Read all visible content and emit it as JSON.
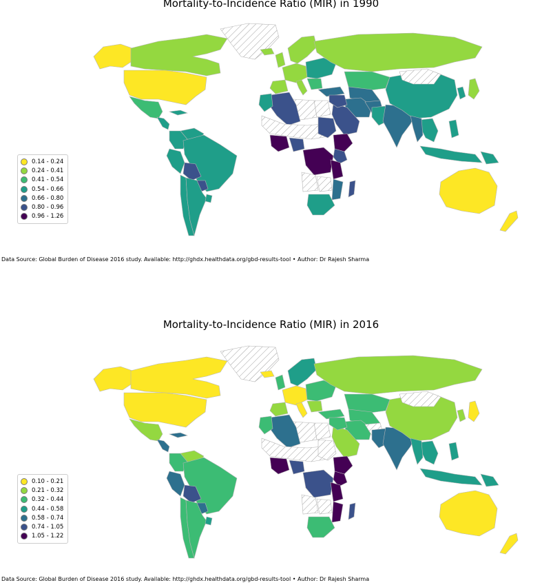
{
  "maps": [
    {
      "title": "Mortality-to-Incidence Ratio (MIR) in 1990",
      "legend": [
        {
          "label": "0.14 - 0.24",
          "color": "#fde725"
        },
        {
          "label": "0.24 - 0.41",
          "color": "#94d840"
        },
        {
          "label": "0.41 - 0.54",
          "color": "#3cbc74"
        },
        {
          "label": "0.54 - 0.66",
          "color": "#1f9e89"
        },
        {
          "label": "0.66 - 0.80",
          "color": "#2d708e"
        },
        {
          "label": "0.80 - 0.96",
          "color": "#3b528b"
        },
        {
          "label": "0.96 - 1.26",
          "color": "#440154"
        }
      ],
      "source": "Data Source: Global Burden of Disease 2016 study. Available: http://ghdx.healthdata.org/gbd-results-tool • Author: Dr Rajesh Sharma"
    },
    {
      "title": "Mortality-to-Incidence Ratio (MIR) in 2016",
      "legend": [
        {
          "label": "0.10 - 0.21",
          "color": "#fde725"
        },
        {
          "label": "0.21 - 0.32",
          "color": "#94d840"
        },
        {
          "label": "0.32 - 0.44",
          "color": "#3cbc74"
        },
        {
          "label": "0.44 - 0.58",
          "color": "#1f9e89"
        },
        {
          "label": "0.58 - 0.74",
          "color": "#2d708e"
        },
        {
          "label": "0.74 - 1.05",
          "color": "#3b528b"
        },
        {
          "label": "1.05 - 1.22",
          "color": "#440154"
        }
      ],
      "source": "Data Source: Global Burden of Disease 2016 study. Available: http://ghdx.healthdata.org/gbd-results-tool • Author: Dr Rajesh Sharma"
    }
  ],
  "regions": [
    {
      "name": "alaska",
      "c1990": 0,
      "c2016": 0
    },
    {
      "name": "canada",
      "c1990": 1,
      "c2016": 0
    },
    {
      "name": "greenland",
      "c1990": -1,
      "c2016": -1
    },
    {
      "name": "usa",
      "c1990": 0,
      "c2016": 0
    },
    {
      "name": "mexico",
      "c1990": 2,
      "c2016": 1
    },
    {
      "name": "central-america",
      "c1990": 3,
      "c2016": 4
    },
    {
      "name": "cuba",
      "c1990": 3,
      "c2016": 4
    },
    {
      "name": "venezuela",
      "c1990": 3,
      "c2016": 1
    },
    {
      "name": "colombia",
      "c1990": 3,
      "c2016": 2
    },
    {
      "name": "peru",
      "c1990": 3,
      "c2016": 4
    },
    {
      "name": "brazil",
      "c1990": 3,
      "c2016": 2
    },
    {
      "name": "bolivia",
      "c1990": 5,
      "c2016": 5
    },
    {
      "name": "paraguay",
      "c1990": 5,
      "c2016": 4
    },
    {
      "name": "chile",
      "c1990": 3,
      "c2016": 2
    },
    {
      "name": "argentina",
      "c1990": 3,
      "c2016": 2
    },
    {
      "name": "uruguay",
      "c1990": 3,
      "c2016": 3
    },
    {
      "name": "iceland",
      "c1990": 1,
      "c2016": 0
    },
    {
      "name": "uk",
      "c1990": 1,
      "c2016": 2
    },
    {
      "name": "scandinavia",
      "c1990": 1,
      "c2016": 3
    },
    {
      "name": "western-europe",
      "c1990": 1,
      "c2016": 0
    },
    {
      "name": "iberia",
      "c1990": 1,
      "c2016": 1
    },
    {
      "name": "italy",
      "c1990": 1,
      "c2016": 0
    },
    {
      "name": "eastern-europe",
      "c1990": 3,
      "c2016": 2
    },
    {
      "name": "balkans",
      "c1990": 2,
      "c2016": 1
    },
    {
      "name": "turkey",
      "c1990": 4,
      "c2016": 2
    },
    {
      "name": "russia",
      "c1990": 1,
      "c2016": 1
    },
    {
      "name": "kazakhstan",
      "c1990": 2,
      "c2016": 2
    },
    {
      "name": "central-asia",
      "c1990": 4,
      "c2016": 2
    },
    {
      "name": "iran",
      "c1990": 4,
      "c2016": 2
    },
    {
      "name": "afghanistan",
      "c1990": 4,
      "c2016": -1
    },
    {
      "name": "pakistan",
      "c1990": 3,
      "c2016": 4
    },
    {
      "name": "india",
      "c1990": 4,
      "c2016": 4
    },
    {
      "name": "china",
      "c1990": 3,
      "c2016": 1
    },
    {
      "name": "mongolia",
      "c1990": -1,
      "c2016": -1
    },
    {
      "name": "korea",
      "c1990": 3,
      "c2016": 1
    },
    {
      "name": "japan",
      "c1990": 1,
      "c2016": 0
    },
    {
      "name": "southeast-asia",
      "c1990": 3,
      "c2016": 3
    },
    {
      "name": "myanmar",
      "c1990": 4,
      "c2016": 3
    },
    {
      "name": "philippines",
      "c1990": 3,
      "c2016": 3
    },
    {
      "name": "indonesia",
      "c1990": 3,
      "c2016": 3
    },
    {
      "name": "papua",
      "c1990": 3,
      "c2016": 3
    },
    {
      "name": "australia",
      "c1990": 0,
      "c2016": 0
    },
    {
      "name": "new-zealand",
      "c1990": 0,
      "c2016": 0
    },
    {
      "name": "arabia",
      "c1990": 5,
      "c2016": 1
    },
    {
      "name": "iraq-syria",
      "c1990": 5,
      "c2016": 2
    },
    {
      "name": "egypt",
      "c1990": -1,
      "c2016": -1
    },
    {
      "name": "libya",
      "c1990": -1,
      "c2016": -1
    },
    {
      "name": "algeria",
      "c1990": 5,
      "c2016": 4
    },
    {
      "name": "morocco",
      "c1990": 3,
      "c2016": 2
    },
    {
      "name": "sahel",
      "c1990": -1,
      "c2016": -1
    },
    {
      "name": "west-africa",
      "c1990": 6,
      "c2016": 6
    },
    {
      "name": "nigeria",
      "c1990": 5,
      "c2016": 5
    },
    {
      "name": "sudan",
      "c1990": 5,
      "c2016": -1
    },
    {
      "name": "ethiopia",
      "c1990": 6,
      "c2016": 6
    },
    {
      "name": "east-africa",
      "c1990": 5,
      "c2016": 6
    },
    {
      "name": "drc",
      "c1990": 6,
      "c2016": 5
    },
    {
      "name": "tanzania",
      "c1990": 6,
      "c2016": 6
    },
    {
      "name": "angola",
      "c1990": -1,
      "c2016": -1
    },
    {
      "name": "zambia",
      "c1990": -1,
      "c2016": -1
    },
    {
      "name": "mozambique",
      "c1990": 4,
      "c2016": 6
    },
    {
      "name": "south-africa",
      "c1990": 3,
      "c2016": 2
    },
    {
      "name": "madagascar",
      "c1990": 5,
      "c2016": 5
    }
  ]
}
